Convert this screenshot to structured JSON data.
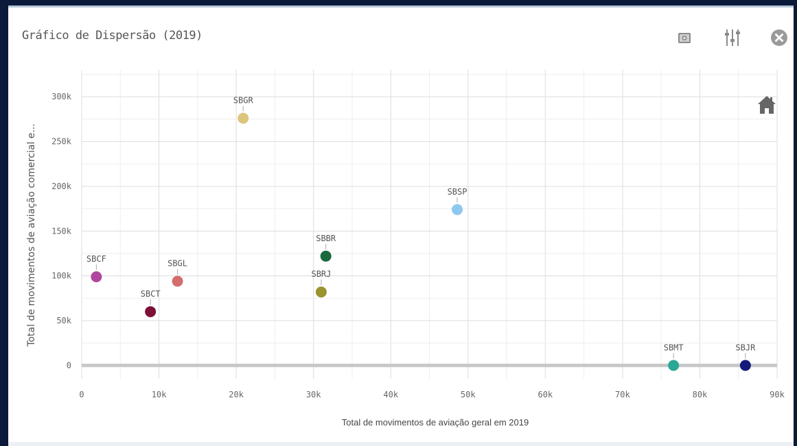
{
  "header": {
    "title": "Gráfico de Dispersão (2019)"
  },
  "toolbar": {
    "icons": [
      "camera-icon",
      "sliders-icon",
      "close-icon",
      "home-icon"
    ]
  },
  "colors": {
    "SBCF": "#b0479e",
    "SBCT": "#7d1038",
    "SBGL": "#d46e6e",
    "SBGR": "#dcc57c",
    "SBBR": "#1a6a3d",
    "SBRJ": "#9a9330",
    "SBSP": "#8ec8ef",
    "SBMT": "#2aa895",
    "SBJR": "#161a7a"
  },
  "chart_data": {
    "type": "scatter",
    "title": "Gráfico de Dispersão (2019)",
    "xlabel": "Total de movimentos de aviação geral em 2019",
    "ylabel": "Total de movimentos de aviação comercial e...",
    "xlim": [
      0,
      90000
    ],
    "ylim": [
      -15000,
      330000
    ],
    "xticks": [
      0,
      10000,
      20000,
      30000,
      40000,
      50000,
      60000,
      70000,
      80000,
      90000
    ],
    "xtick_labels": [
      "0",
      "10k",
      "20k",
      "30k",
      "40k",
      "50k",
      "60k",
      "70k",
      "80k",
      "90k"
    ],
    "yticks": [
      0,
      50000,
      100000,
      150000,
      200000,
      250000,
      300000
    ],
    "ytick_labels": [
      "0",
      "50k",
      "100k",
      "150k",
      "200k",
      "250k",
      "300k"
    ],
    "grid": true,
    "points": [
      {
        "label": "SBCF",
        "x": 1900,
        "y": 99000
      },
      {
        "label": "SBCT",
        "x": 8900,
        "y": 60000
      },
      {
        "label": "SBGL",
        "x": 12400,
        "y": 94000
      },
      {
        "label": "SBGR",
        "x": 20900,
        "y": 276000
      },
      {
        "label": "SBBR",
        "x": 31600,
        "y": 122000
      },
      {
        "label": "SBRJ",
        "x": 31000,
        "y": 82000
      },
      {
        "label": "SBSP",
        "x": 48600,
        "y": 174000
      },
      {
        "label": "SBMT",
        "x": 76600,
        "y": 0
      },
      {
        "label": "SBJR",
        "x": 85900,
        "y": 0
      }
    ]
  }
}
